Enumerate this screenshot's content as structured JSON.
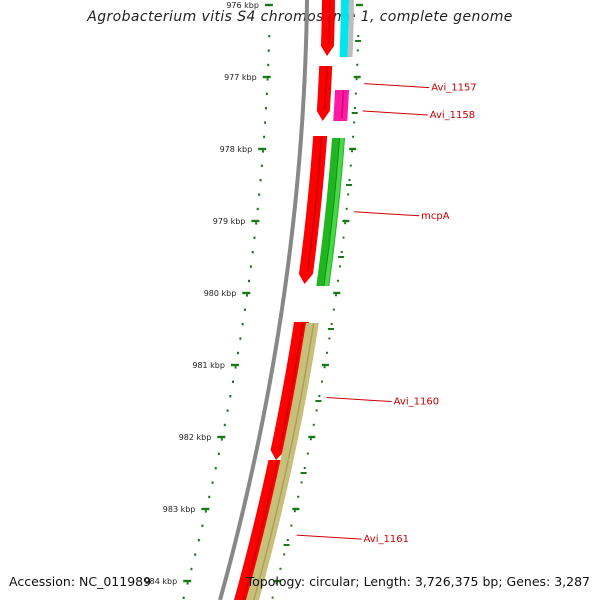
{
  "title": "Agrobacterium vitis S4 chromosome 1, complete genome",
  "footer": {
    "accession": "Accession: NC_011989",
    "summary": "Topology: circular; Length: 3,726,375 bp; Genes: 3,287"
  },
  "ticks": [
    {
      "label": "976 kbp",
      "kbp": 976
    },
    {
      "label": "977 kbp",
      "kbp": 977
    },
    {
      "label": "978 kbp",
      "kbp": 978
    },
    {
      "label": "979 kbp",
      "kbp": 979
    },
    {
      "label": "980 kbp",
      "kbp": 980
    },
    {
      "label": "981 kbp",
      "kbp": 981
    },
    {
      "label": "982 kbp",
      "kbp": 982
    },
    {
      "label": "983 kbp",
      "kbp": 983
    },
    {
      "label": "984 kbp",
      "kbp": 984
    }
  ],
  "gene_labels": [
    {
      "name": "Avi_1157",
      "kbp": 977.12
    },
    {
      "name": "Avi_1158",
      "kbp": 977.5
    },
    {
      "name": "mcpA",
      "kbp": 978.9
    },
    {
      "name": "Avi_1160",
      "kbp": 981.48
    },
    {
      "name": "Avi_1161",
      "kbp": 983.39
    }
  ],
  "colors": {
    "backbone": "#888888",
    "cds": "#ff0000",
    "cyan": "#00e5f0",
    "magenta": "#ff1aa3",
    "green": "#22b522",
    "olive": "#c8bf7a",
    "gray_feature": "#bdbdbd",
    "tick": "#1a7a1a",
    "label": "#cc0000"
  }
}
